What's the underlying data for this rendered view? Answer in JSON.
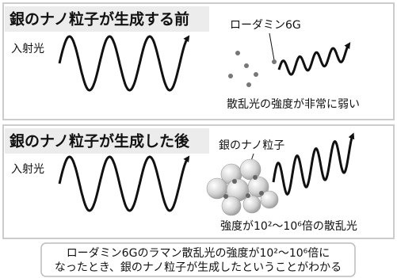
{
  "panels": [
    {
      "title": "銀のナノ粒子が生成する前",
      "incident_label": "入射光",
      "molecule_label": "ローダミン6G",
      "result": "散乱光の強度が非常に弱い"
    },
    {
      "title": "銀のナノ粒子が生成した後",
      "incident_label": "入射光",
      "particle_label": "銀のナノ粒子",
      "result": "強度が10²～10⁶倍の散乱光"
    }
  ],
  "caption": [
    "ローダミン6Gのラマン散乱光の強度が10²～10⁶倍に",
    "なったとき、銀のナノ粒子が生成したということがわかる"
  ]
}
